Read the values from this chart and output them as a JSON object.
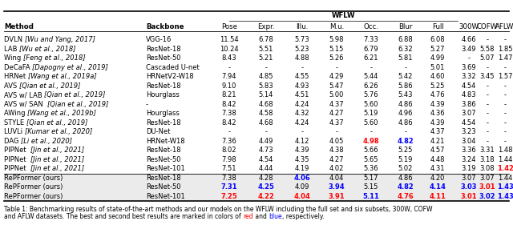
{
  "title": "WFLW",
  "caption_line1": "Table 1: Benchmarking results of state-of-the-art methods and our models on the WFLW including the full set and six subsets, 300W, COFW",
  "caption_line2_parts": [
    {
      "text": "and AFLW datasets. The best and second best results are marked in colors of ",
      "color": "black"
    },
    {
      "text": "red",
      "color": "red"
    },
    {
      "text": " and ",
      "color": "black"
    },
    {
      "text": "blue",
      "color": "blue"
    },
    {
      "text": ", respectively.",
      "color": "black"
    }
  ],
  "col_headers": [
    "Method",
    "Backbone",
    "Pose",
    "Expr.",
    "Illu.",
    "M.u.",
    "Occ.",
    "Blur",
    "Full",
    "300W",
    "COFW",
    "AFLW"
  ],
  "rows": [
    {
      "method_normal": "DVLN ",
      "method_italic": "[Wu and Yang, 2017]",
      "backbone": "VGG-16",
      "vals": [
        "11.54",
        "6.78",
        "5.73",
        "5.98",
        "7.33",
        "6.88",
        "6.08",
        "4.66",
        "-",
        "-"
      ],
      "vc": {}
    },
    {
      "method_normal": "LAB ",
      "method_italic": "[Wu et al., 2018]",
      "backbone": "ResNet-18",
      "vals": [
        "10.24",
        "5.51",
        "5.23",
        "5.15",
        "6.79",
        "6.32",
        "5.27",
        "3.49",
        "5.58",
        "1.85"
      ],
      "vc": {}
    },
    {
      "method_normal": "Wing ",
      "method_italic": "[Feng et al., 2018]",
      "backbone": "ResNet-50",
      "vals": [
        "8.43",
        "5.21",
        "4.88",
        "5.26",
        "6.21",
        "5.81",
        "4.99",
        "-",
        "5.07",
        "1.47"
      ],
      "vc": {}
    },
    {
      "method_normal": "DeCaFA ",
      "method_italic": "[Dapogny et al., 2019]",
      "backbone": "Cascaded U-net",
      "vals": [
        "-",
        "-",
        "-",
        "-",
        "-",
        "-",
        "5.01",
        "3.69",
        "-",
        "-"
      ],
      "vc": {}
    },
    {
      "method_normal": "HRNet ",
      "method_italic": "[Wang et al., 2019a]",
      "backbone": "HRNetV2-W18",
      "vals": [
        "7.94",
        "4.85",
        "4.55",
        "4.29",
        "5.44",
        "5.42",
        "4.60",
        "3.32",
        "3.45",
        "1.57"
      ],
      "vc": {}
    },
    {
      "method_normal": "AVS ",
      "method_italic": "[Qian et al., 2019]",
      "backbone": "ResNet-18",
      "vals": [
        "9.10",
        "5.83",
        "4.93",
        "5.47",
        "6.26",
        "5.86",
        "5.25",
        "4.54",
        "-",
        "-"
      ],
      "vc": {}
    },
    {
      "method_normal": "AVS w/ LAB ",
      "method_italic": "[Qian et al., 2019]",
      "backbone": "Hourglass",
      "vals": [
        "8.21",
        "5.14",
        "4.51",
        "5.00",
        "5.76",
        "5.43",
        "4.76",
        "4.83",
        "-",
        "-"
      ],
      "vc": {}
    },
    {
      "method_normal": "AVS w/ SAN  ",
      "method_italic": "[Qian et al., 2019]",
      "backbone": "-",
      "vals": [
        "8.42",
        "4.68",
        "4.24",
        "4.37",
        "5.60",
        "4.86",
        "4.39",
        "3.86",
        "-",
        "-"
      ],
      "vc": {}
    },
    {
      "method_normal": "AWing ",
      "method_italic": "[Wang et al., 2019b]",
      "backbone": "Hourglass",
      "vals": [
        "7.38",
        "4.58",
        "4.32",
        "4.27",
        "5.19",
        "4.96",
        "4.36",
        "3.07",
        "-",
        "-"
      ],
      "vc": {}
    },
    {
      "method_normal": "STYLE ",
      "method_italic": "[Qian et al., 2019]",
      "backbone": "ResNet-18",
      "vals": [
        "8.42",
        "4.68",
        "4.24",
        "4.37",
        "5.60",
        "4.86",
        "4.39",
        "4.54",
        "-",
        "-"
      ],
      "vc": {}
    },
    {
      "method_normal": "LUVLi ",
      "method_italic": "[Kumar et al., 2020]",
      "backbone": "DU-Net",
      "vals": [
        "-",
        "-",
        "-",
        "-",
        "-",
        "-",
        "4.37",
        "3.23",
        "-",
        "-"
      ],
      "vc": {}
    },
    {
      "method_normal": "DAG ",
      "method_italic": "[Li et al., 2020]",
      "backbone": "HRNet-W18",
      "vals": [
        "7.36",
        "4.49",
        "4.12",
        "4.05",
        "4.98",
        "4.82",
        "4.21",
        "3.04",
        "-",
        "-"
      ],
      "vc": {
        "4": "red",
        "5": "blue"
      }
    },
    {
      "method_normal": "PIPNet  ",
      "method_italic": "[Jin et al., 2021]",
      "backbone": "ResNet-18",
      "vals": [
        "8.02",
        "4.73",
        "4.39",
        "4.38",
        "5.66",
        "5.25",
        "4.57",
        "3.36",
        "3.31",
        "1.48"
      ],
      "vc": {}
    },
    {
      "method_normal": "PIPNet  ",
      "method_italic": "[Jin et al., 2021]",
      "backbone": "ResNet-50",
      "vals": [
        "7.98",
        "4.54",
        "4.35",
        "4.27",
        "5.65",
        "5.19",
        "4.48",
        "3.24",
        "3.18",
        "1.44"
      ],
      "vc": {}
    },
    {
      "method_normal": "PIPNet  ",
      "method_italic": "[Jin et al., 2021]",
      "backbone": "ResNet-101",
      "vals": [
        "7.51",
        "4.44",
        "4.19",
        "4.02",
        "5.36",
        "5.02",
        "4.31",
        "3.19",
        "3.08",
        "1.42"
      ],
      "vc": {
        "9": "red"
      }
    }
  ],
  "repformer_rows": [
    {
      "method_normal": "RePFormer (ours)",
      "method_italic": "",
      "backbone": "ResNet-18",
      "vals": [
        "7.38",
        "4.28",
        "4.06",
        "4.04",
        "5.17",
        "4.86",
        "4.20",
        "3.07",
        "3.07",
        "1.44"
      ],
      "vc": {
        "2": "blue"
      }
    },
    {
      "method_normal": "RePFormer (ours)",
      "method_italic": "",
      "backbone": "ResNet-50",
      "vals": [
        "7.31",
        "4.25",
        "4.09",
        "3.94",
        "5.15",
        "4.82",
        "4.14",
        "3.03",
        "3.01",
        "1.43"
      ],
      "vc": {
        "0": "blue",
        "1": "blue",
        "3": "blue",
        "5": "blue",
        "6": "blue",
        "7": "blue",
        "8": "red",
        "9": "blue"
      }
    },
    {
      "method_normal": "RePFormer (ours)",
      "method_italic": "",
      "backbone": "ResNet-101",
      "vals": [
        "7.25",
        "4.22",
        "4.04",
        "3.91",
        "5.11",
        "4.76",
        "4.11",
        "3.01",
        "3.02",
        "1.43"
      ],
      "vc": {
        "0": "red",
        "1": "red",
        "2": "red",
        "3": "red",
        "4": "blue",
        "5": "red",
        "6": "red",
        "7": "red",
        "8": "blue",
        "9": "blue"
      }
    }
  ],
  "bg_color": "#ffffff",
  "repformer_bg": "#ebebeb",
  "font_size": 6.0,
  "header_font_size": 6.2
}
